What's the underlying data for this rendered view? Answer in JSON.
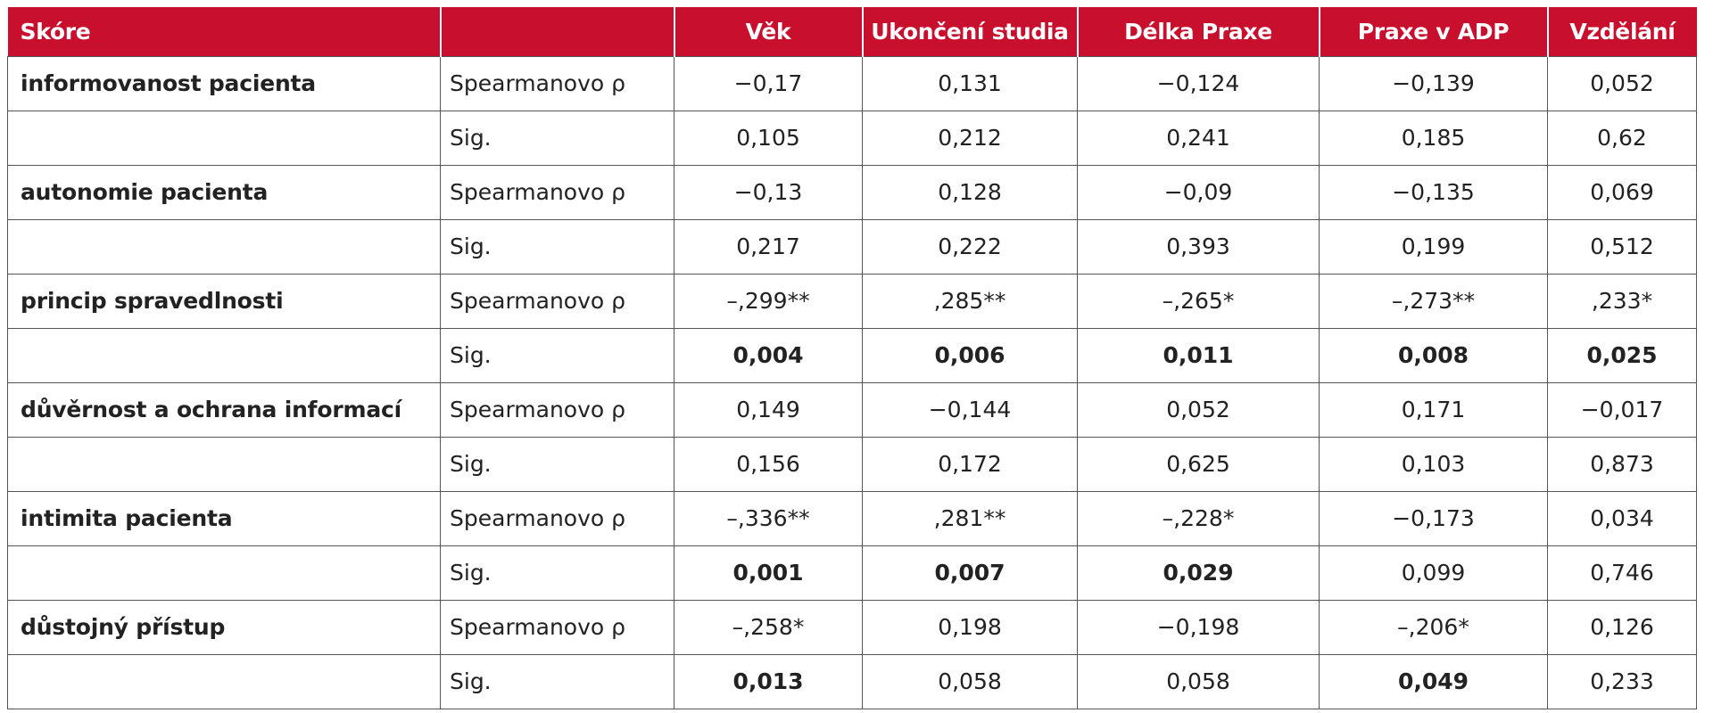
{
  "header": {
    "columns": [
      "Skóre",
      "",
      "Věk",
      "Ukončení studia",
      "Délka Praxe",
      "Praxe v ADP",
      "Vzdělání"
    ]
  },
  "rows": [
    {
      "score": "informovanost pacienta",
      "stat": "Spearmanovo ρ",
      "values": [
        "−0,17",
        "0,131",
        "−0,124",
        "−0,139",
        "0,052"
      ],
      "bold": [
        false,
        false,
        false,
        false,
        false
      ]
    },
    {
      "score": "",
      "stat": "Sig.",
      "values": [
        "0,105",
        "0,212",
        "0,241",
        "0,185",
        "0,62"
      ],
      "bold": [
        false,
        false,
        false,
        false,
        false
      ]
    },
    {
      "score": "autonomie pacienta",
      "stat": "Spearmanovo ρ",
      "values": [
        "−0,13",
        "0,128",
        "−0,09",
        "−0,135",
        "0,069"
      ],
      "bold": [
        false,
        false,
        false,
        false,
        false
      ]
    },
    {
      "score": "",
      "stat": "Sig.",
      "values": [
        "0,217",
        "0,222",
        "0,393",
        "0,199",
        "0,512"
      ],
      "bold": [
        false,
        false,
        false,
        false,
        false
      ]
    },
    {
      "score": "princip spravedlnosti",
      "stat": "Spearmanovo ρ",
      "values": [
        "–,299**",
        ",285**",
        "–,265*",
        "–,273**",
        ",233*"
      ],
      "bold": [
        false,
        false,
        false,
        false,
        false
      ]
    },
    {
      "score": "",
      "stat": "Sig.",
      "values": [
        "0,004",
        "0,006",
        "0,011",
        "0,008",
        "0,025"
      ],
      "bold": [
        true,
        true,
        true,
        true,
        true
      ]
    },
    {
      "score": "důvěrnost a ochrana informací",
      "stat": "Spearmanovo ρ",
      "values": [
        "0,149",
        "−0,144",
        "0,052",
        "0,171",
        "−0,017"
      ],
      "bold": [
        false,
        false,
        false,
        false,
        false
      ]
    },
    {
      "score": "",
      "stat": "Sig.",
      "values": [
        "0,156",
        "0,172",
        "0,625",
        "0,103",
        "0,873"
      ],
      "bold": [
        false,
        false,
        false,
        false,
        false
      ]
    },
    {
      "score": "intimita pacienta",
      "stat": "Spearmanovo ρ",
      "values": [
        "–,336**",
        ",281**",
        "–,228*",
        "−0,173",
        "0,034"
      ],
      "bold": [
        false,
        false,
        false,
        false,
        false
      ]
    },
    {
      "score": "",
      "stat": "Sig.",
      "values": [
        "0,001",
        "0,007",
        "0,029",
        "0,099",
        "0,746"
      ],
      "bold": [
        true,
        true,
        true,
        false,
        false
      ]
    },
    {
      "score": "důstojný přístup",
      "stat": "Spearmanovo ρ",
      "values": [
        "–,258*",
        "0,198",
        "−0,198",
        "–,206*",
        "0,126"
      ],
      "bold": [
        false,
        false,
        false,
        false,
        false
      ]
    },
    {
      "score": "",
      "stat": "Sig.",
      "values": [
        "0,013",
        "0,058",
        "0,058",
        "0,049",
        "0,233"
      ],
      "bold": [
        true,
        false,
        false,
        true,
        false
      ]
    }
  ],
  "colors": {
    "header_bg": "#c8102e",
    "header_text": "#ffffff",
    "grid": "#555555"
  }
}
